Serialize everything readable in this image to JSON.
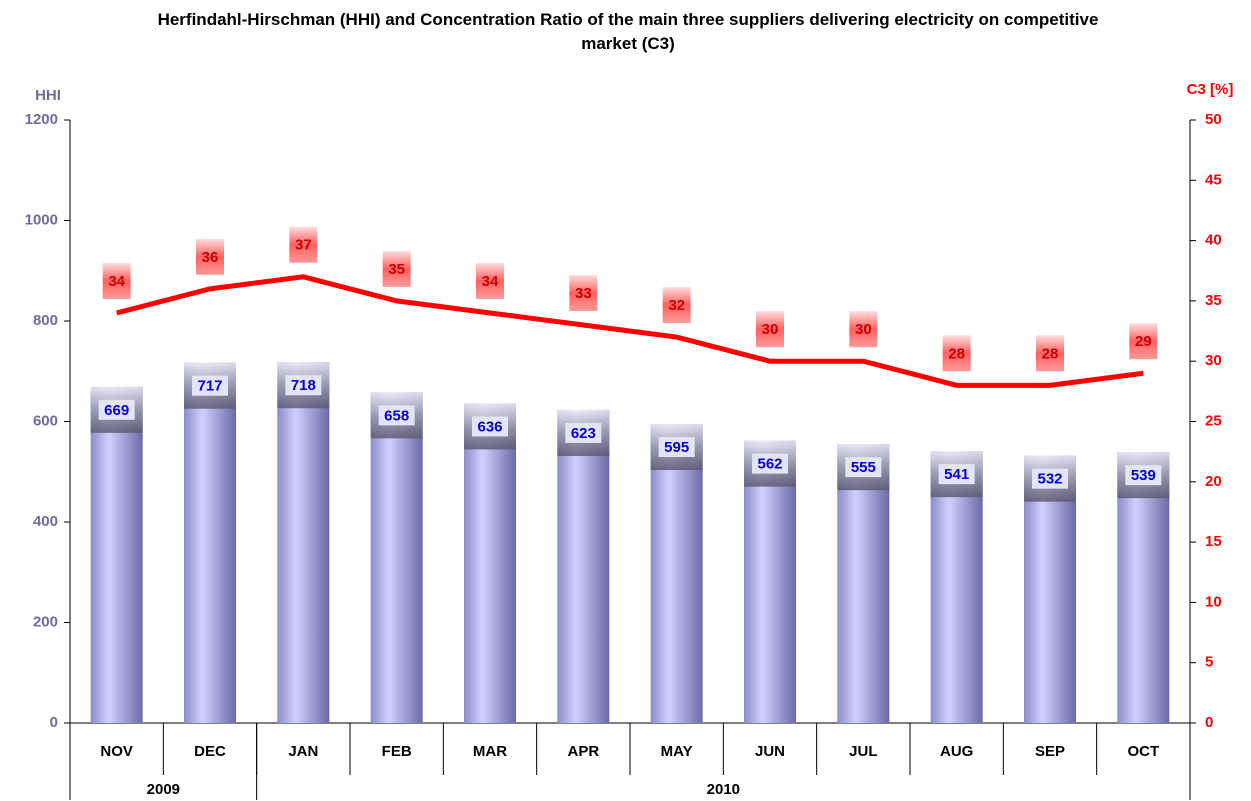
{
  "chart_data": {
    "type": "bar-line",
    "title": "Herfindahl-Hirschman (HHI) and Concentration Ratio of the main three suppliers delivering electricity on competitive market (C3)",
    "ylabel": "HHI",
    "y2label": "C3 [%]",
    "categories": [
      "NOV",
      "DEC",
      "JAN",
      "FEB",
      "MAR",
      "APR",
      "MAY",
      "JUN",
      "JUL",
      "AUG",
      "SEP",
      "OCT"
    ],
    "category_groups": [
      {
        "label": "2009",
        "span": 2
      },
      {
        "label": "2010",
        "span": 10
      }
    ],
    "series": [
      {
        "name": "HHI",
        "type": "bar",
        "color": "#b4b4ee",
        "values": [
          669,
          717,
          718,
          658,
          636,
          623,
          595,
          562,
          555,
          541,
          532,
          539
        ]
      },
      {
        "name": "C3",
        "type": "line",
        "axis": "y2",
        "color": "#ff0000",
        "values": [
          34,
          36,
          37,
          35,
          34,
          33,
          32,
          30,
          30,
          28,
          28,
          29
        ]
      }
    ],
    "ylim": [
      0,
      1200
    ],
    "yticks": [
      0,
      200,
      400,
      600,
      800,
      1000,
      1200
    ],
    "y2lim": [
      0,
      50
    ],
    "y2ticks": [
      0,
      5,
      10,
      15,
      20,
      25,
      30,
      35,
      40,
      45,
      50
    ]
  }
}
